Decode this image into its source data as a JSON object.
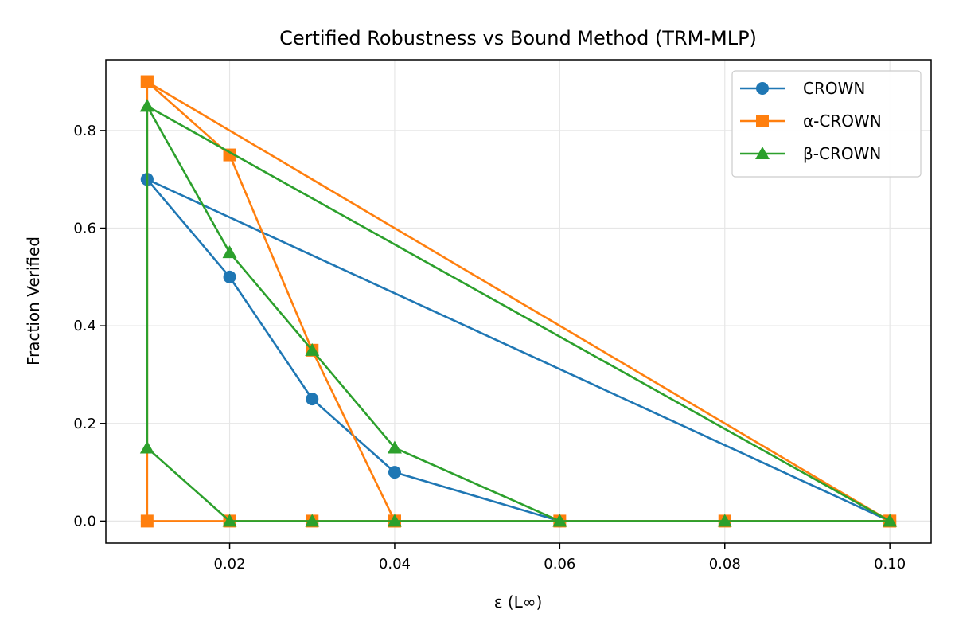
{
  "chart_data": {
    "type": "line",
    "title": "Certified Robustness vs Bound Method (TRM-MLP)",
    "xlabel": "ε (L∞)",
    "ylabel": "Fraction Verified",
    "xlim": [
      0.005,
      0.105
    ],
    "ylim": [
      -0.045,
      0.945
    ],
    "x_ticks": [
      0.02,
      0.04,
      0.06,
      0.08,
      0.1
    ],
    "x_tick_labels": [
      "0.02",
      "0.04",
      "0.06",
      "0.08",
      "0.10"
    ],
    "y_ticks": [
      0.0,
      0.2,
      0.4,
      0.6,
      0.8
    ],
    "y_tick_labels": [
      "0.0",
      "0.2",
      "0.4",
      "0.6",
      "0.8"
    ],
    "grid": true,
    "legend_position": "top-right",
    "series": [
      {
        "name": "CROWN",
        "color": "#1f77b4",
        "marker": "circle",
        "points": [
          [
            0.01,
            0.7
          ],
          [
            0.02,
            0.5
          ],
          [
            0.03,
            0.25
          ],
          [
            0.04,
            0.1
          ],
          [
            0.06,
            0.0
          ],
          [
            0.1,
            0.0
          ],
          [
            0.01,
            0.7
          ]
        ]
      },
      {
        "name": "α-CROWN",
        "color": "#ff7f0e",
        "marker": "square",
        "points": [
          [
            0.01,
            0.9
          ],
          [
            0.02,
            0.75
          ],
          [
            0.03,
            0.35
          ],
          [
            0.04,
            0.0
          ],
          [
            0.1,
            0.0
          ],
          [
            0.01,
            0.9
          ],
          [
            0.01,
            0.0
          ],
          [
            0.02,
            0.0
          ],
          [
            0.03,
            0.0
          ],
          [
            0.04,
            0.0
          ],
          [
            0.06,
            0.0
          ],
          [
            0.08,
            0.0
          ],
          [
            0.1,
            0.0
          ]
        ]
      },
      {
        "name": "β-CROWN",
        "color": "#2ca02c",
        "marker": "triangle",
        "points": [
          [
            0.01,
            0.85
          ],
          [
            0.02,
            0.55
          ],
          [
            0.03,
            0.35
          ],
          [
            0.04,
            0.15
          ],
          [
            0.06,
            0.0
          ],
          [
            0.1,
            0.0
          ],
          [
            0.01,
            0.85
          ],
          [
            0.01,
            0.15
          ],
          [
            0.02,
            0.0
          ],
          [
            0.03,
            0.0
          ],
          [
            0.04,
            0.0
          ],
          [
            0.06,
            0.0
          ],
          [
            0.08,
            0.0
          ],
          [
            0.1,
            0.0
          ]
        ]
      }
    ]
  }
}
